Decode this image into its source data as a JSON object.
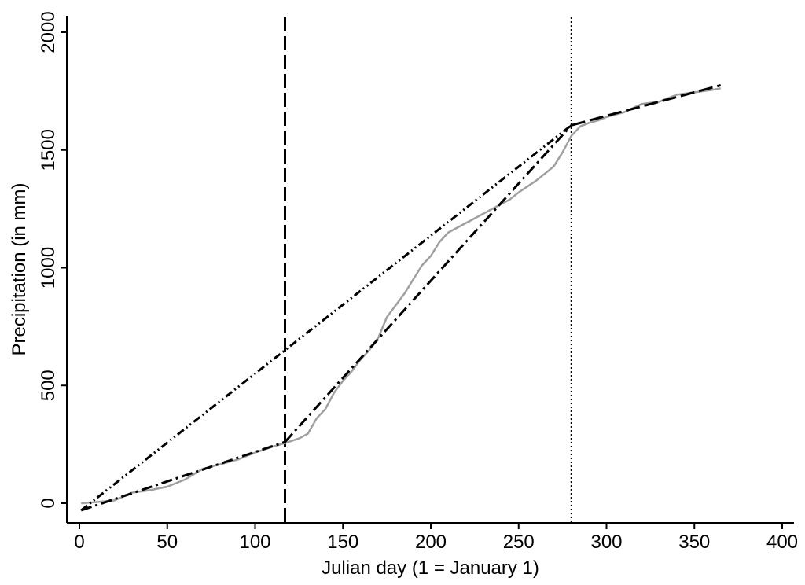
{
  "chart_data": {
    "type": "line",
    "title": "",
    "xlabel": "Julian day (1 = January 1)",
    "ylabel": "Precipitation (in mm)",
    "xlim": [
      0,
      400
    ],
    "ylim": [
      -80,
      2050
    ],
    "xticks": [
      0,
      50,
      100,
      150,
      200,
      250,
      300,
      350,
      400
    ],
    "yticks": [
      0,
      500,
      1000,
      1500,
      2000
    ],
    "grid": false,
    "legend": "none",
    "series": [
      {
        "style": "solid-gray",
        "color": "#a0a0a0",
        "x": [
          1,
          10,
          20,
          30,
          40,
          50,
          60,
          70,
          80,
          90,
          100,
          110,
          117,
          125,
          130,
          135,
          140,
          145,
          150,
          155,
          160,
          165,
          170,
          175,
          180,
          185,
          190,
          195,
          200,
          205,
          210,
          215,
          220,
          225,
          230,
          235,
          240,
          245,
          250,
          255,
          260,
          265,
          270,
          275,
          280,
          285,
          290,
          295,
          300,
          310,
          320,
          330,
          340,
          350,
          360,
          365
        ],
        "y": [
          0,
          5,
          12,
          45,
          55,
          70,
          100,
          145,
          165,
          185,
          215,
          240,
          255,
          275,
          295,
          360,
          400,
          470,
          520,
          560,
          610,
          650,
          700,
          790,
          840,
          890,
          950,
          1010,
          1050,
          1110,
          1150,
          1170,
          1190,
          1210,
          1230,
          1250,
          1270,
          1290,
          1320,
          1345,
          1370,
          1400,
          1430,
          1490,
          1560,
          1600,
          1615,
          1625,
          1640,
          1660,
          1695,
          1705,
          1735,
          1745,
          1755,
          1762
        ]
      },
      {
        "style": "dash-dot",
        "color": "#000000",
        "x": [
          1,
          117
        ],
        "y": [
          -30,
          260
        ]
      },
      {
        "style": "dash-dot",
        "color": "#000000",
        "x": [
          117,
          280
        ],
        "y": [
          260,
          1605
        ]
      },
      {
        "style": "dash-dot-dot",
        "color": "#000000",
        "x": [
          1,
          280
        ],
        "y": [
          -30,
          1605
        ]
      },
      {
        "style": "long-dash",
        "color": "#000000",
        "x": [
          280,
          365
        ],
        "y": [
          1605,
          1775
        ]
      }
    ],
    "vlines": [
      {
        "x": 117,
        "style": "long-dash",
        "color": "#000000"
      },
      {
        "x": 280,
        "style": "dotted",
        "color": "#000000"
      }
    ]
  }
}
